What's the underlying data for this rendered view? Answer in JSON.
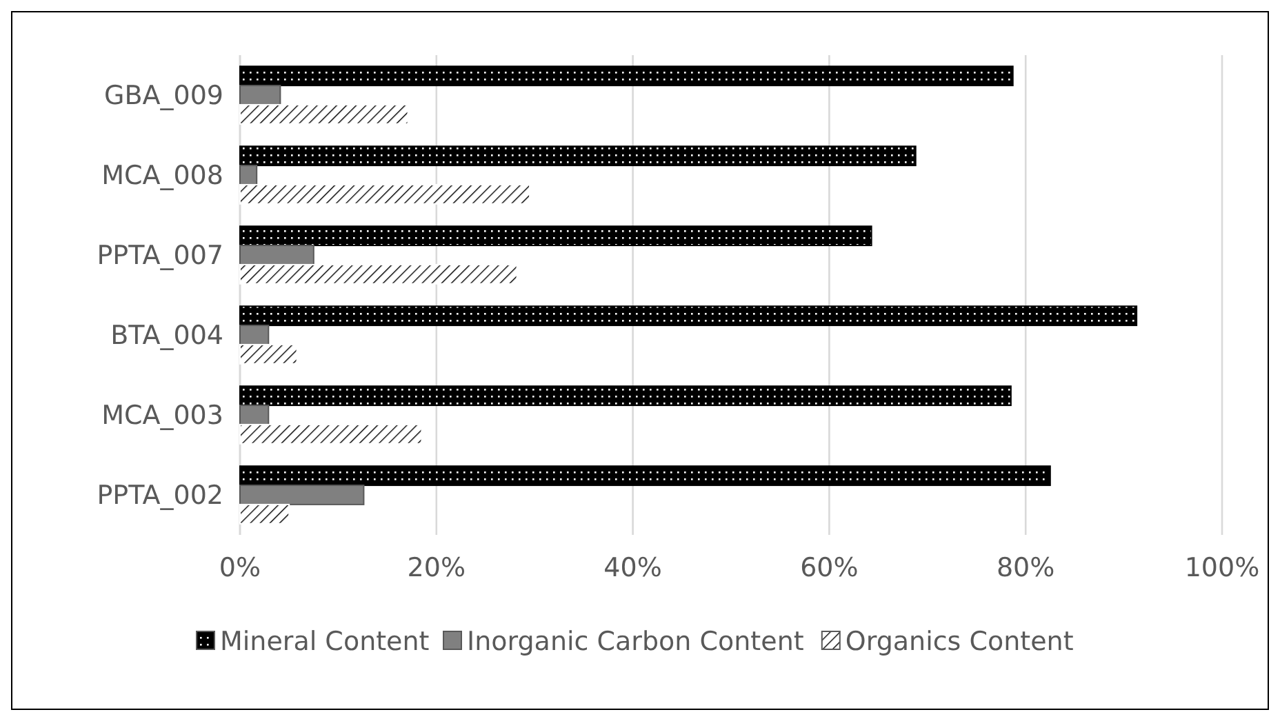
{
  "chart_data": {
    "type": "bar",
    "orientation": "horizontal",
    "categories": [
      "GBA_009",
      "MCA_008",
      "PPTA_007",
      "BTA_004",
      "MCA_003",
      "PPTA_002"
    ],
    "series": [
      {
        "name": "Mineral Content",
        "color": "#000000",
        "values": [
          78.7,
          68.8,
          64.3,
          91.3,
          78.5,
          82.5
        ]
      },
      {
        "name": "Inorganic Carbon Content",
        "color": "#808080",
        "values": [
          4.1,
          1.7,
          7.5,
          2.9,
          2.9,
          12.6
        ]
      },
      {
        "name": "Organics Content",
        "color": "#ffffff",
        "values": [
          17.1,
          29.5,
          28.2,
          5.8,
          18.5,
          5.0
        ]
      }
    ],
    "xlim": [
      0,
      100
    ],
    "xticks": [
      {
        "value": 0,
        "label": "0%"
      },
      {
        "value": 20,
        "label": "20%"
      },
      {
        "value": 40,
        "label": "40%"
      },
      {
        "value": 60,
        "label": "60%"
      },
      {
        "value": 80,
        "label": "80%"
      },
      {
        "value": 100,
        "label": "100%"
      }
    ],
    "grid": "x",
    "legend": "bottom"
  }
}
